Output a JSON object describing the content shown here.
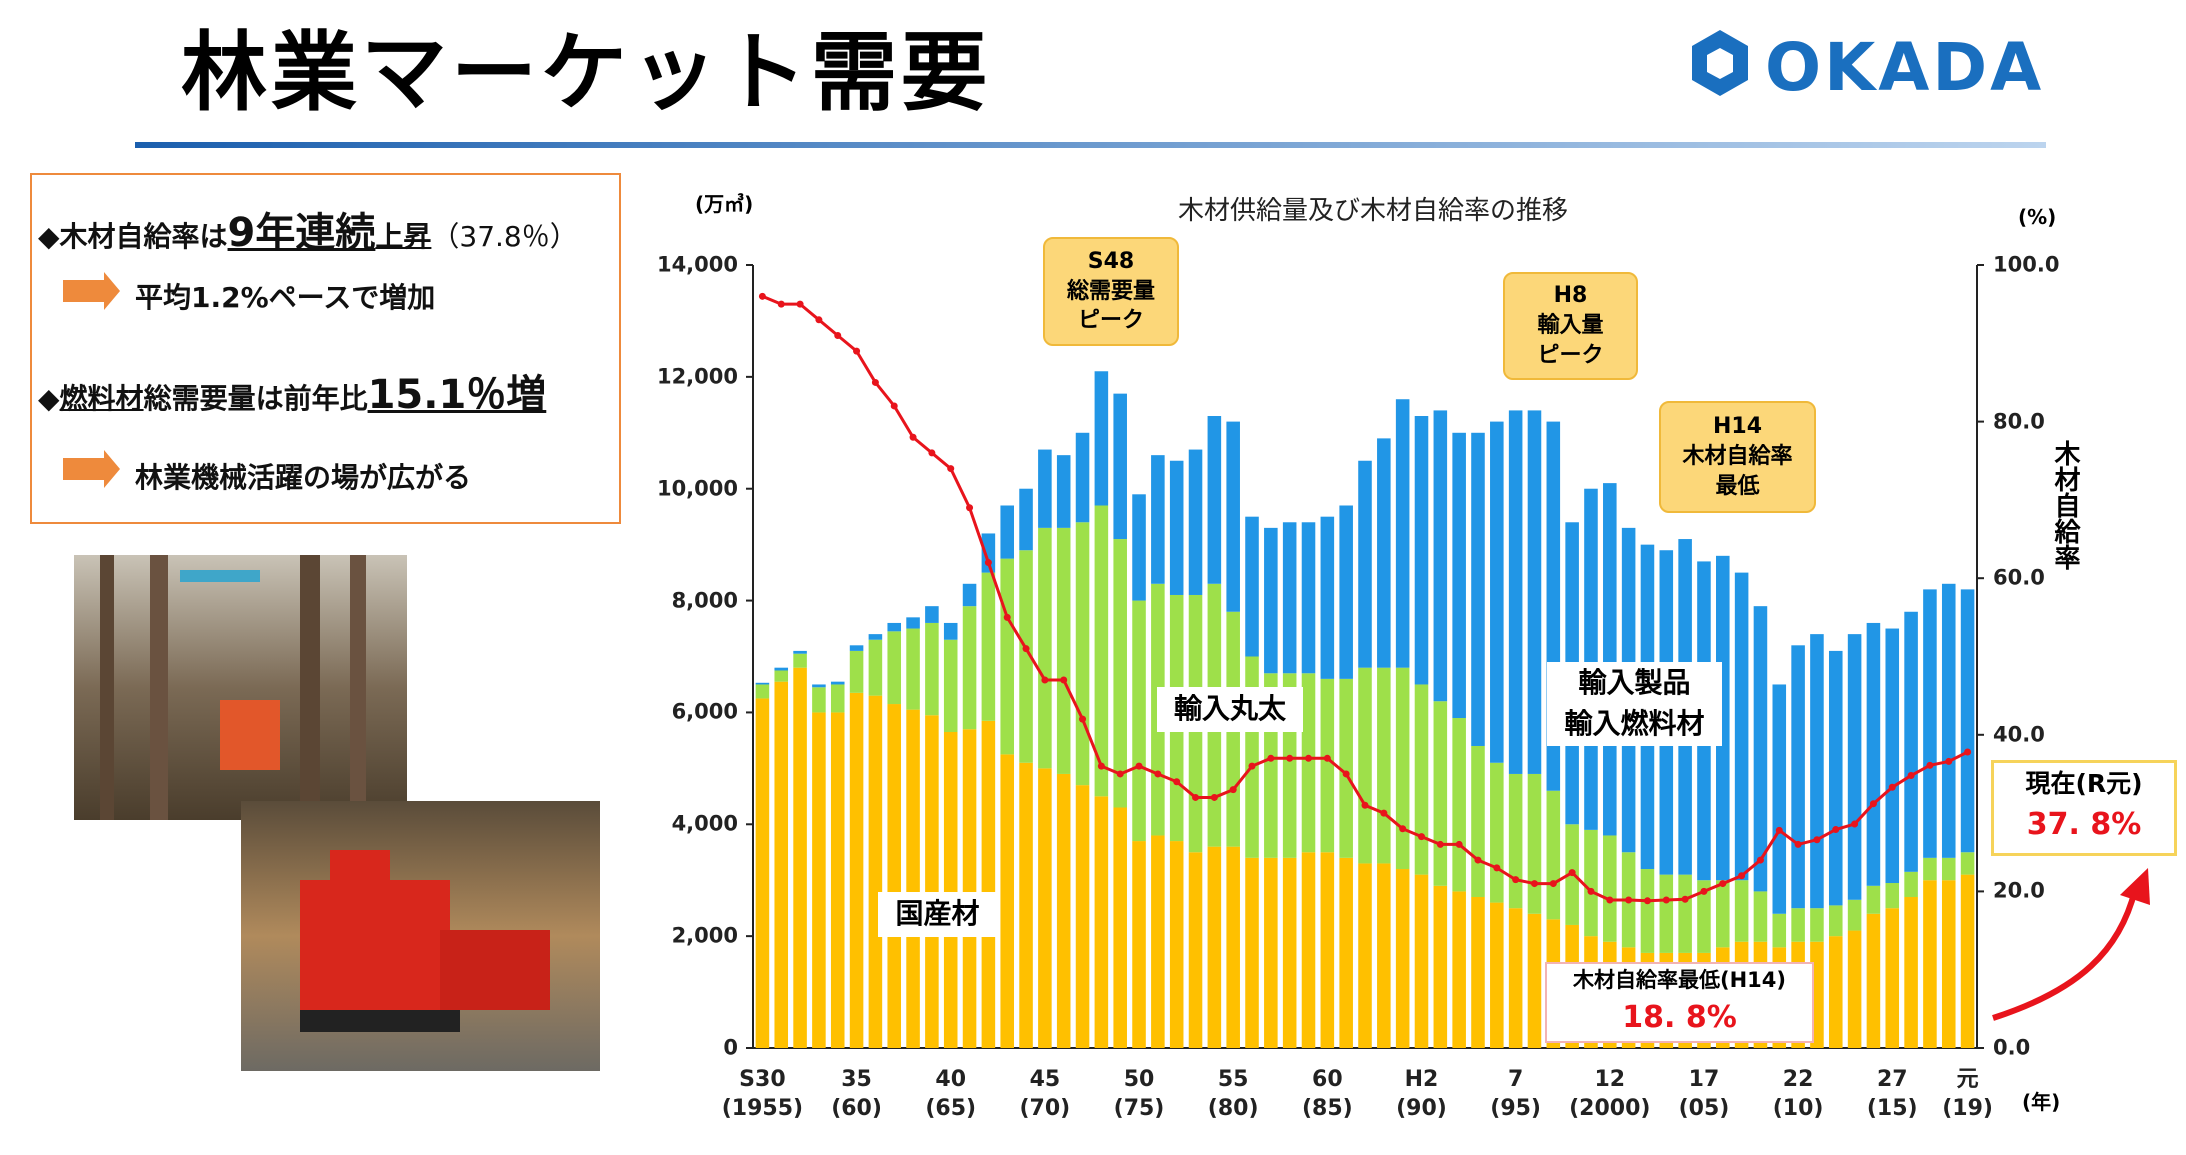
{
  "header": {
    "title": "林業マーケット需要",
    "logo": "OKADA"
  },
  "bullets": [
    {
      "parts": [
        "◆木材自給率は",
        "9年連続",
        "上昇",
        "（37.8％）"
      ]
    },
    {
      "parts": [
        "平均1.2%ペースで増加"
      ]
    },
    {
      "parts": [
        "◆",
        "燃料材",
        "総需要量は前年比",
        "15.1％増"
      ]
    },
    {
      "parts": [
        "林業機械活躍の場が広がる"
      ]
    }
  ],
  "chart_data": {
    "type": "bar",
    "stacked": true,
    "title": "木材供給量及び木材自給率の推移",
    "y_label": "(万㎥)",
    "y2_label": "(%)",
    "y2_title": "木材自給率",
    "x_label": "(年)",
    "categories": [
      "S30\n(1955)",
      null,
      null,
      null,
      null,
      "35\n(60)",
      null,
      null,
      null,
      null,
      "40\n(65)",
      null,
      null,
      null,
      null,
      "45\n(70)",
      null,
      null,
      null,
      null,
      "50\n(75)",
      null,
      null,
      null,
      null,
      "55\n(80)",
      null,
      null,
      null,
      null,
      "60\n(85)",
      null,
      null,
      null,
      null,
      "H2\n(90)",
      null,
      null,
      null,
      null,
      "7\n(95)",
      null,
      null,
      null,
      null,
      "12\n(2000)",
      null,
      null,
      null,
      null,
      "17\n(05)",
      null,
      null,
      null,
      null,
      "22\n(10)",
      null,
      null,
      null,
      null,
      "27\n(15)",
      null,
      null,
      null,
      "元\n(19)"
    ],
    "series": [
      {
        "name": "国産材",
        "color": "#ffc000",
        "values": [
          6250,
          6550,
          6800,
          6000,
          6000,
          6350,
          6300,
          6150,
          6050,
          5950,
          5650,
          5700,
          5850,
          5250,
          5100,
          5000,
          4900,
          4700,
          4500,
          4300,
          3700,
          3800,
          3700,
          3500,
          3600,
          3600,
          3400,
          3400,
          3400,
          3500,
          3500,
          3400,
          3300,
          3300,
          3200,
          3100,
          2900,
          2800,
          2700,
          2600,
          2500,
          2400,
          2300,
          2200,
          2000,
          1900,
          1800,
          1700,
          1700,
          1700,
          1700,
          1800,
          1900,
          1900,
          1800,
          1900,
          1900,
          2000,
          2100,
          2400,
          2500,
          2700,
          3000,
          3000,
          3100
        ]
      },
      {
        "name": "輸入丸太",
        "color": "#9ee04a",
        "values": [
          250,
          200,
          250,
          450,
          500,
          750,
          1000,
          1300,
          1450,
          1650,
          1650,
          2200,
          2650,
          3500,
          3800,
          4300,
          4400,
          4700,
          5200,
          4800,
          4300,
          4500,
          4400,
          4600,
          4700,
          4200,
          3600,
          3300,
          3300,
          3200,
          3100,
          3200,
          3500,
          3500,
          3600,
          3400,
          3300,
          3100,
          2700,
          2500,
          2400,
          2500,
          2300,
          1800,
          1900,
          1900,
          1700,
          1500,
          1400,
          1400,
          1300,
          1200,
          1100,
          900,
          600,
          600,
          600,
          550,
          550,
          500,
          450,
          450,
          400,
          400,
          400
        ]
      },
      {
        "name": "輸入製品\n輸入燃料材",
        "color": "#2196e6",
        "values": [
          30,
          50,
          50,
          50,
          50,
          100,
          100,
          150,
          200,
          300,
          300,
          400,
          700,
          950,
          1100,
          1400,
          1300,
          1600,
          2400,
          2600,
          1900,
          2300,
          2400,
          2600,
          3000,
          3400,
          2500,
          2600,
          2700,
          2700,
          2900,
          3100,
          3700,
          4100,
          4800,
          4800,
          5200,
          5100,
          5600,
          6100,
          6500,
          6500,
          6600,
          5400,
          6100,
          6300,
          5800,
          5800,
          5800,
          6000,
          5700,
          5800,
          5500,
          5100,
          4100,
          4700,
          4900,
          4550,
          4750,
          4700,
          4550,
          4650,
          4800,
          4900,
          4700
        ]
      },
      {
        "name": "木材自給率",
        "color": "#e8141c",
        "type": "line",
        "axis": "y2",
        "values": [
          96,
          95,
          95,
          93,
          91,
          89,
          85,
          82,
          78,
          76,
          74,
          69,
          62,
          55,
          51,
          47,
          47,
          42,
          36,
          35,
          36,
          35,
          34,
          32,
          32,
          33,
          36,
          37,
          37,
          37,
          37,
          35,
          31,
          30,
          28,
          27,
          26,
          26,
          24,
          23,
          21.5,
          21,
          21,
          22.4,
          20,
          18.9,
          18.9,
          18.8,
          18.9,
          19,
          20,
          21,
          22,
          24,
          27.8,
          26,
          26.6,
          27.9,
          28.6,
          31.2,
          33.3,
          34.8,
          36.1,
          36.6,
          37.8
        ]
      }
    ],
    "ylim": [
      0,
      14000
    ],
    "yticks": [
      0,
      {
        "value": 2000,
        "label": "2,000"
      },
      {
        "value": 4000,
        "label": "4,000"
      },
      {
        "value": 6000,
        "label": "6,000"
      },
      {
        "value": 8000,
        "label": "8,000"
      },
      {
        "value": 10000,
        "label": "10,000"
      },
      {
        "value": 12000,
        "label": "12,000"
      },
      {
        "value": 14000,
        "label": "14,000"
      }
    ],
    "y2lim": [
      0,
      100
    ],
    "y2ticks": [
      {
        "value": 0,
        "label": "0.0"
      },
      {
        "value": 20,
        "label": "20.0"
      },
      {
        "value": 40,
        "label": "40.0"
      },
      {
        "value": 60,
        "label": "60.0"
      },
      {
        "value": 80,
        "label": "80.0"
      },
      {
        "value": 100,
        "label": "100.0"
      }
    ],
    "grid": false,
    "annotations": [
      "S48\n総需要量\nピーク",
      "H8\n輸入量\nピーク",
      "H14\n木材自給率\n最低"
    ],
    "min_label": "木材自給率最低(H14)",
    "min_value_label": "18. 8%",
    "current_label": "現在(R元)",
    "current_value_label": "37. 8%"
  }
}
